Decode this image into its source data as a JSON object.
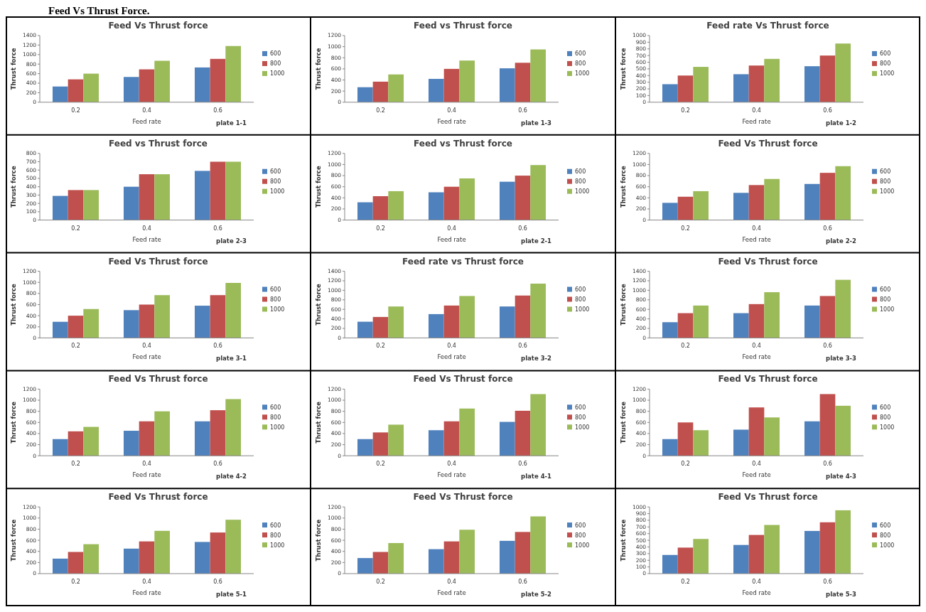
{
  "chart_data": [
    {
      "type": "other",
      "title": "Feed Vs Thrust Force."
    },
    {
      "type": "bar",
      "title": "Feed Vs Thrust force",
      "xlabel": "Feed rate",
      "ylabel": "Thrust force",
      "annotations": [
        "plate 1-1"
      ],
      "categories": [
        "0.2",
        "0.4",
        "0.6"
      ],
      "ylim": [
        0,
        1400
      ],
      "yticks": [
        0,
        200,
        400,
        600,
        800,
        1000,
        1200,
        1400
      ],
      "legend": "right",
      "series": [
        {
          "name": "600",
          "color": "#4f81bd",
          "values": [
            330,
            530,
            730
          ]
        },
        {
          "name": "800",
          "color": "#c0504d",
          "values": [
            480,
            690,
            910
          ]
        },
        {
          "name": "1000",
          "color": "#9bbb59",
          "values": [
            600,
            870,
            1180
          ]
        }
      ]
    },
    {
      "type": "bar",
      "title": "Feed vs Thrust force",
      "xlabel": "Feed rate",
      "ylabel": "Thrust force",
      "annotations": [
        "plate 1-3"
      ],
      "categories": [
        "0.2",
        "0.4",
        "0.6"
      ],
      "ylim": [
        0,
        1200
      ],
      "yticks": [
        0,
        200,
        400,
        600,
        800,
        1000,
        1200
      ],
      "legend": "right",
      "series": [
        {
          "name": "600",
          "color": "#4f81bd",
          "values": [
            270,
            420,
            610
          ]
        },
        {
          "name": "800",
          "color": "#c0504d",
          "values": [
            370,
            600,
            710
          ]
        },
        {
          "name": "1000",
          "color": "#9bbb59",
          "values": [
            500,
            750,
            950
          ]
        }
      ]
    },
    {
      "type": "bar",
      "title": "Feed rate Vs Thrust force",
      "xlabel": "Feed rate",
      "ylabel": "Thrust force",
      "annotations": [
        "plate 1-2"
      ],
      "categories": [
        "0.2",
        "0.4",
        "0.6"
      ],
      "ylim": [
        0,
        1000
      ],
      "yticks": [
        0,
        100,
        200,
        300,
        400,
        500,
        600,
        700,
        800,
        900,
        1000
      ],
      "legend": "right",
      "series": [
        {
          "name": "600",
          "color": "#4f81bd",
          "values": [
            270,
            420,
            540
          ]
        },
        {
          "name": "800",
          "color": "#c0504d",
          "values": [
            400,
            550,
            700
          ]
        },
        {
          "name": "1000",
          "color": "#9bbb59",
          "values": [
            530,
            650,
            880
          ]
        }
      ]
    },
    {
      "type": "bar",
      "title": "Feed vs Thrust force",
      "xlabel": "Feed rate",
      "ylabel": "Thrust force",
      "annotations": [
        "plate 2-3"
      ],
      "categories": [
        "0.2",
        "0.4",
        "0.6"
      ],
      "ylim": [
        0,
        800
      ],
      "yticks": [
        0,
        100,
        200,
        300,
        400,
        500,
        600,
        700,
        800
      ],
      "legend": "right",
      "series": [
        {
          "name": "600",
          "color": "#4f81bd",
          "values": [
            290,
            400,
            590
          ]
        },
        {
          "name": "800",
          "color": "#c0504d",
          "values": [
            360,
            550,
            700
          ]
        },
        {
          "name": "1000",
          "color": "#9bbb59",
          "values": [
            360,
            550,
            700
          ]
        }
      ]
    },
    {
      "type": "bar",
      "title": "Feed vs Thrust force",
      "xlabel": "Feed rate",
      "ylabel": "Thrust force",
      "annotations": [
        "plate 2-1"
      ],
      "categories": [
        "0.2",
        "0.4",
        "0.6"
      ],
      "ylim": [
        0,
        1200
      ],
      "yticks": [
        0,
        200,
        400,
        600,
        800,
        1000,
        1200
      ],
      "legend": "right",
      "series": [
        {
          "name": "600",
          "color": "#4f81bd",
          "values": [
            320,
            500,
            690
          ]
        },
        {
          "name": "800",
          "color": "#c0504d",
          "values": [
            430,
            600,
            800
          ]
        },
        {
          "name": "1000",
          "color": "#9bbb59",
          "values": [
            520,
            750,
            990
          ]
        }
      ]
    },
    {
      "type": "bar",
      "title": "Feed Vs Thrust force",
      "xlabel": "Feed rate",
      "ylabel": "Thrust force",
      "annotations": [
        "plate 2-2"
      ],
      "categories": [
        "0.2",
        "0.4",
        "0.6"
      ],
      "ylim": [
        0,
        1200
      ],
      "yticks": [
        0,
        200,
        400,
        600,
        800,
        1000,
        1200
      ],
      "legend": "right",
      "series": [
        {
          "name": "600",
          "color": "#4f81bd",
          "values": [
            310,
            490,
            650
          ]
        },
        {
          "name": "800",
          "color": "#c0504d",
          "values": [
            420,
            630,
            850
          ]
        },
        {
          "name": "1000",
          "color": "#9bbb59",
          "values": [
            520,
            740,
            970
          ]
        }
      ]
    },
    {
      "type": "bar",
      "title": "Feed Vs Thrust force",
      "xlabel": "Feed rate",
      "ylabel": "Thrust force",
      "annotations": [
        "plate 3-1"
      ],
      "categories": [
        "0.2",
        "0.4",
        "0.6"
      ],
      "ylim": [
        0,
        1200
      ],
      "yticks": [
        0,
        200,
        400,
        600,
        800,
        1000,
        1200
      ],
      "legend": "right",
      "series": [
        {
          "name": "600",
          "color": "#4f81bd",
          "values": [
            290,
            500,
            580
          ]
        },
        {
          "name": "800",
          "color": "#c0504d",
          "values": [
            400,
            600,
            770
          ]
        },
        {
          "name": "1000",
          "color": "#9bbb59",
          "values": [
            520,
            770,
            990
          ]
        }
      ]
    },
    {
      "type": "bar",
      "title": "Feed rate vs Thrust force",
      "xlabel": "Feed rate",
      "ylabel": "Thrust force",
      "annotations": [
        "plate 3-2"
      ],
      "categories": [
        "0.2",
        "0.4",
        "0.6"
      ],
      "ylim": [
        0,
        1400
      ],
      "yticks": [
        0,
        200,
        400,
        600,
        800,
        1000,
        1200,
        1400
      ],
      "legend": "right",
      "series": [
        {
          "name": "600",
          "color": "#4f81bd",
          "values": [
            340,
            500,
            660
          ]
        },
        {
          "name": "800",
          "color": "#c0504d",
          "values": [
            440,
            680,
            890
          ]
        },
        {
          "name": "1000",
          "color": "#9bbb59",
          "values": [
            660,
            880,
            1140
          ]
        }
      ]
    },
    {
      "type": "bar",
      "title": "Feed Vs Thrust force",
      "xlabel": "Feed rate",
      "ylabel": "Thrust force",
      "annotations": [
        "plate 3-3"
      ],
      "categories": [
        "0.2",
        "0.4",
        "0.6"
      ],
      "ylim": [
        0,
        1400
      ],
      "yticks": [
        0,
        200,
        400,
        600,
        800,
        1000,
        1200,
        1400
      ],
      "legend": "right",
      "series": [
        {
          "name": "600",
          "color": "#4f81bd",
          "values": [
            330,
            520,
            680
          ]
        },
        {
          "name": "800",
          "color": "#c0504d",
          "values": [
            520,
            710,
            880
          ]
        },
        {
          "name": "1000",
          "color": "#9bbb59",
          "values": [
            680,
            960,
            1220
          ]
        }
      ]
    },
    {
      "type": "bar",
      "title": "Feed Vs Thrust force",
      "xlabel": "Feed rate",
      "ylabel": "Thrust force",
      "annotations": [
        "plate 4-2"
      ],
      "categories": [
        "0.2",
        "0.4",
        "0.6"
      ],
      "ylim": [
        0,
        1200
      ],
      "yticks": [
        0,
        200,
        400,
        600,
        800,
        1000,
        1200
      ],
      "legend": "right",
      "series": [
        {
          "name": "600",
          "color": "#4f81bd",
          "values": [
            300,
            450,
            620
          ]
        },
        {
          "name": "800",
          "color": "#c0504d",
          "values": [
            440,
            620,
            820
          ]
        },
        {
          "name": "1000",
          "color": "#9bbb59",
          "values": [
            520,
            800,
            1020
          ]
        }
      ]
    },
    {
      "type": "bar",
      "title": "Feed Vs Thrust force",
      "xlabel": "Feed rate",
      "ylabel": "Thrust force",
      "annotations": [
        "plate 4-1"
      ],
      "categories": [
        "0.2",
        "0.4",
        "0.6"
      ],
      "ylim": [
        0,
        1200
      ],
      "yticks": [
        0,
        200,
        400,
        600,
        800,
        1000,
        1200
      ],
      "legend": "right",
      "series": [
        {
          "name": "600",
          "color": "#4f81bd",
          "values": [
            300,
            460,
            610
          ]
        },
        {
          "name": "800",
          "color": "#c0504d",
          "values": [
            420,
            620,
            810
          ]
        },
        {
          "name": "1000",
          "color": "#9bbb59",
          "values": [
            560,
            850,
            1110
          ]
        }
      ]
    },
    {
      "type": "bar",
      "title": "Feed Vs Thrust force",
      "xlabel": "Feed rate",
      "ylabel": "Thrust force",
      "annotations": [
        "plate 4-3"
      ],
      "categories": [
        "0.2",
        "0.4",
        "0.6"
      ],
      "ylim": [
        0,
        1200
      ],
      "yticks": [
        0,
        200,
        400,
        600,
        800,
        1000,
        1200
      ],
      "legend": "right",
      "series": [
        {
          "name": "600",
          "color": "#4f81bd",
          "values": [
            300,
            470,
            620
          ]
        },
        {
          "name": "800",
          "color": "#c0504d",
          "values": [
            600,
            870,
            1110
          ]
        },
        {
          "name": "1000",
          "color": "#9bbb59",
          "values": [
            460,
            690,
            900
          ]
        }
      ]
    },
    {
      "type": "bar",
      "title": "Feed Vs Thrust force",
      "xlabel": "Feed rate",
      "ylabel": "Thrust force",
      "annotations": [
        "plate 5-1"
      ],
      "categories": [
        "0.2",
        "0.4",
        "0.6"
      ],
      "ylim": [
        0,
        1200
      ],
      "yticks": [
        0,
        200,
        400,
        600,
        800,
        1000,
        1200
      ],
      "legend": "right",
      "series": [
        {
          "name": "600",
          "color": "#4f81bd",
          "values": [
            270,
            450,
            570
          ]
        },
        {
          "name": "800",
          "color": "#c0504d",
          "values": [
            390,
            580,
            740
          ]
        },
        {
          "name": "1000",
          "color": "#9bbb59",
          "values": [
            530,
            770,
            970
          ]
        }
      ]
    },
    {
      "type": "bar",
      "title": "Feed Vs Thrust force",
      "xlabel": "Feed rate",
      "ylabel": "Thrust force",
      "annotations": [
        "plate 5-2"
      ],
      "categories": [
        "0.2",
        "0.4",
        "0.6"
      ],
      "ylim": [
        0,
        1200
      ],
      "yticks": [
        0,
        200,
        400,
        600,
        800,
        1000,
        1200
      ],
      "legend": "right",
      "series": [
        {
          "name": "600",
          "color": "#4f81bd",
          "values": [
            280,
            440,
            590
          ]
        },
        {
          "name": "800",
          "color": "#c0504d",
          "values": [
            390,
            580,
            750
          ]
        },
        {
          "name": "1000",
          "color": "#9bbb59",
          "values": [
            550,
            790,
            1030
          ]
        }
      ]
    },
    {
      "type": "bar",
      "title": "Feed Vs Thrust force",
      "xlabel": "Feed rate",
      "ylabel": "Thrust force",
      "annotations": [
        "plate 5-3"
      ],
      "categories": [
        "0.2",
        "0.4",
        "0.6"
      ],
      "ylim": [
        0,
        1000
      ],
      "yticks": [
        0,
        100,
        200,
        300,
        400,
        500,
        600,
        700,
        800,
        900,
        1000
      ],
      "legend": "right",
      "series": [
        {
          "name": "600",
          "color": "#4f81bd",
          "values": [
            280,
            430,
            640
          ]
        },
        {
          "name": "800",
          "color": "#c0504d",
          "values": [
            390,
            580,
            770
          ]
        },
        {
          "name": "1000",
          "color": "#9bbb59",
          "values": [
            520,
            730,
            950
          ]
        }
      ]
    }
  ]
}
